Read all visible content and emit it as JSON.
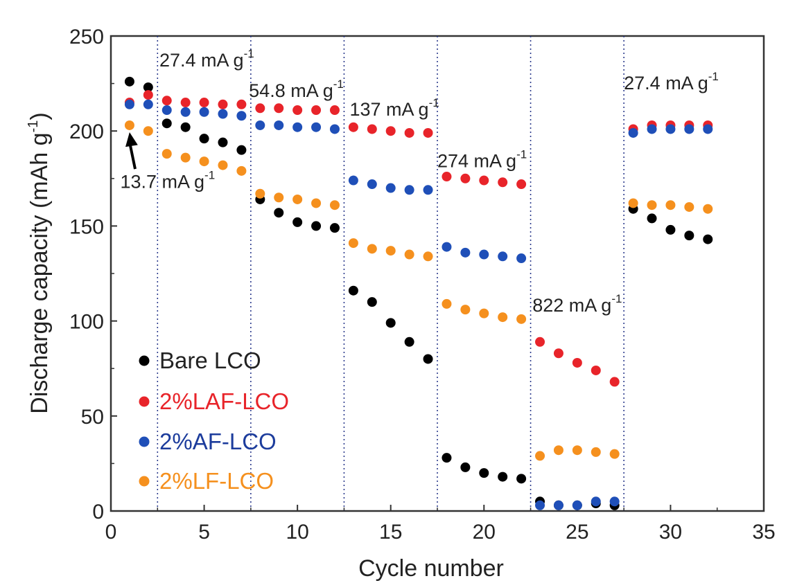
{
  "chart_data": {
    "type": "scatter",
    "xlabel": "Cycle number",
    "ylabel": "Discharge capacity (mAh g",
    "ylabel_sup": "-1",
    "ylabel_close": ")",
    "xlim": [
      0,
      35
    ],
    "ylim": [
      0,
      250
    ],
    "xticks": [
      0,
      5,
      10,
      15,
      20,
      25,
      30,
      35
    ],
    "yticks": [
      0,
      50,
      100,
      150,
      200,
      250
    ],
    "rate_boundaries": [
      2.5,
      7.5,
      12.5,
      17.5,
      22.5,
      27.5
    ],
    "annotations": [
      {
        "id": "a0",
        "text": "13.7 mA g",
        "sup": "-1",
        "x": 0.5,
        "y": 170,
        "arrow_from": [
          1.3,
          180
        ],
        "arrow_to": [
          1.0,
          203
        ]
      },
      {
        "id": "a1",
        "text": "27.4 mA g",
        "sup": "-1",
        "x": 2.6,
        "y": 234
      },
      {
        "id": "a2",
        "text": "54.8 mA g",
        "sup": "-1",
        "x": 7.4,
        "y": 218
      },
      {
        "id": "a3",
        "text": "137 mA g",
        "sup": "-1",
        "x": 12.8,
        "y": 208
      },
      {
        "id": "a4",
        "text": "274 mA g",
        "sup": "-1",
        "x": 17.5,
        "y": 181
      },
      {
        "id": "a5",
        "text": "822 mA g",
        "sup": "-1",
        "x": 22.6,
        "y": 105
      },
      {
        "id": "a6",
        "text": "27.4 mA g",
        "sup": "-1",
        "x": 27.5,
        "y": 222
      }
    ],
    "series": [
      {
        "name": "Bare LCO",
        "color": "#000000",
        "x": [
          1,
          2,
          3,
          4,
          5,
          6,
          7,
          8,
          9,
          10,
          11,
          12,
          13,
          14,
          15,
          16,
          17,
          18,
          19,
          20,
          21,
          22,
          23,
          24,
          25,
          26,
          27,
          28,
          29,
          30,
          31,
          32
        ],
        "y": [
          226,
          223,
          204,
          202,
          196,
          194,
          190,
          164,
          157,
          152,
          150,
          149,
          116,
          110,
          99,
          89,
          80,
          28,
          23,
          20,
          18,
          17,
          5,
          3,
          3,
          4,
          3,
          159,
          154,
          148,
          145,
          143
        ]
      },
      {
        "name": "2%LAF-LCO",
        "color": "#e8242a",
        "x": [
          1,
          2,
          3,
          4,
          5,
          6,
          7,
          8,
          9,
          10,
          11,
          12,
          13,
          14,
          15,
          16,
          17,
          18,
          19,
          20,
          21,
          22,
          23,
          24,
          25,
          26,
          27,
          28,
          29,
          30,
          31,
          32
        ],
        "y": [
          215,
          219,
          216,
          215,
          215,
          214,
          214,
          212,
          212,
          211,
          211,
          211,
          202,
          201,
          200,
          199,
          199,
          176,
          175,
          174,
          173,
          172,
          89,
          83,
          78,
          74,
          68,
          201,
          203,
          203,
          203,
          203
        ]
      },
      {
        "name": "2%AF-LCO",
        "color": "#1f4fb8",
        "x": [
          1,
          2,
          3,
          4,
          5,
          6,
          7,
          8,
          9,
          10,
          11,
          12,
          13,
          14,
          15,
          16,
          17,
          18,
          19,
          20,
          21,
          22,
          23,
          24,
          25,
          26,
          27,
          28,
          29,
          30,
          31,
          32
        ],
        "y": [
          214,
          214,
          211,
          210,
          210,
          209,
          208,
          203,
          203,
          202,
          202,
          201,
          174,
          172,
          170,
          169,
          169,
          139,
          136,
          135,
          134,
          133,
          3,
          3,
          3,
          5,
          5,
          199,
          201,
          201,
          201,
          201
        ]
      },
      {
        "name": "2%LF-LCO",
        "color": "#f5901e",
        "x": [
          1,
          2,
          3,
          4,
          5,
          6,
          7,
          8,
          9,
          10,
          11,
          12,
          13,
          14,
          15,
          16,
          17,
          18,
          19,
          20,
          21,
          22,
          23,
          24,
          25,
          26,
          27,
          28,
          29,
          30,
          31,
          32
        ],
        "y": [
          203,
          200,
          188,
          186,
          184,
          182,
          179,
          167,
          165,
          164,
          162,
          161,
          141,
          138,
          137,
          135,
          134,
          109,
          106,
          104,
          102,
          101,
          29,
          32,
          32,
          31,
          30,
          162,
          161,
          161,
          160,
          159
        ]
      }
    ]
  }
}
